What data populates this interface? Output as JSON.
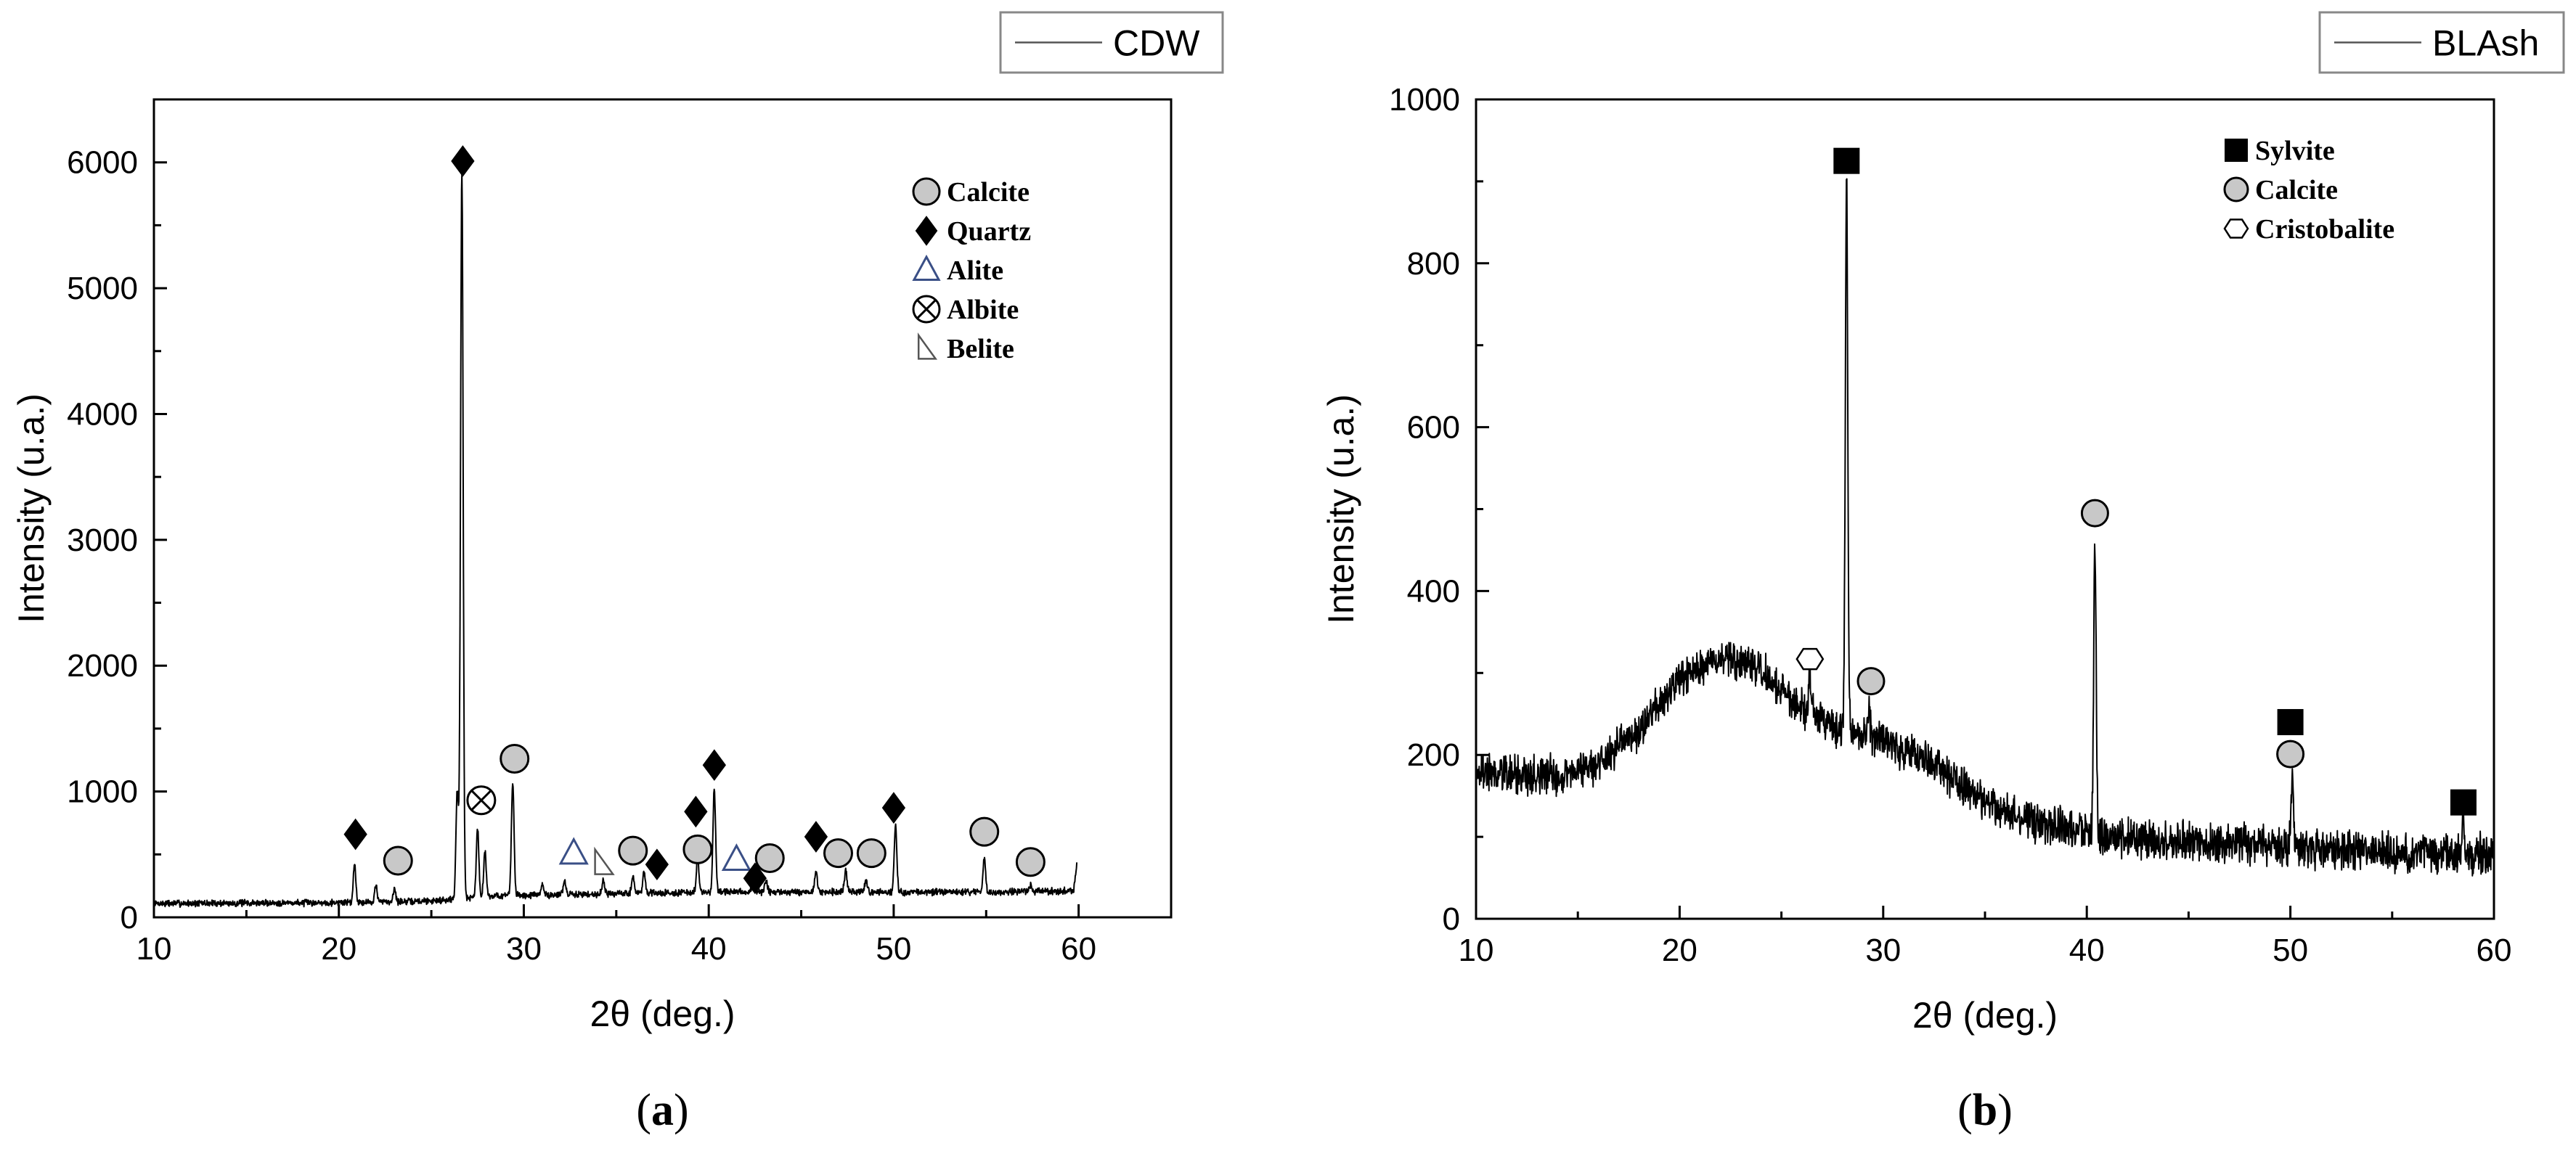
{
  "chart_data": [
    {
      "type": "line",
      "panel_label": "a",
      "series_name": "CDW",
      "xlabel": "2θ (deg.)",
      "ylabel": "Intensity (u.a.)",
      "xlim": [
        10,
        65
      ],
      "ylim": [
        0,
        6500
      ],
      "xticks": [
        10,
        20,
        30,
        40,
        50,
        60
      ],
      "yticks": [
        0,
        1000,
        2000,
        3000,
        4000,
        5000,
        6000
      ],
      "baseline": {
        "x": [
          10,
          18,
          24,
          26,
          28,
          32,
          36,
          40,
          44,
          48,
          52,
          56,
          59.5
        ],
        "y": [
          110,
          115,
          125,
          140,
          170,
          180,
          190,
          200,
          200,
          200,
          200,
          200,
          210
        ]
      },
      "peaks": [
        {
          "x": 20.85,
          "y": 420
        },
        {
          "x": 22.0,
          "y": 250
        },
        {
          "x": 23.0,
          "y": 230
        },
        {
          "x": 26.4,
          "y": 1000
        },
        {
          "x": 26.65,
          "y": 5950
        },
        {
          "x": 27.5,
          "y": 700
        },
        {
          "x": 27.9,
          "y": 520
        },
        {
          "x": 29.4,
          "y": 1080
        },
        {
          "x": 31.0,
          "y": 260
        },
        {
          "x": 32.2,
          "y": 290
        },
        {
          "x": 34.3,
          "y": 300
        },
        {
          "x": 35.9,
          "y": 330
        },
        {
          "x": 36.5,
          "y": 360
        },
        {
          "x": 39.4,
          "y": 460
        },
        {
          "x": 40.3,
          "y": 1020
        },
        {
          "x": 42.4,
          "y": 300
        },
        {
          "x": 43.1,
          "y": 290
        },
        {
          "x": 45.8,
          "y": 370
        },
        {
          "x": 47.4,
          "y": 370
        },
        {
          "x": 48.5,
          "y": 300
        },
        {
          "x": 50.1,
          "y": 720
        },
        {
          "x": 54.9,
          "y": 470
        },
        {
          "x": 57.4,
          "y": 260
        },
        {
          "x": 59.9,
          "y": 420
        }
      ],
      "legend": [
        {
          "label": "Calcite",
          "marker": "circle-gray"
        },
        {
          "label": "Quartz",
          "marker": "diamond-black"
        },
        {
          "label": "Alite",
          "marker": "triangle-blue"
        },
        {
          "label": "Albite",
          "marker": "circle-cross"
        },
        {
          "label": "Belite",
          "marker": "right-triangle"
        }
      ],
      "markers": [
        {
          "phase": "Quartz",
          "marker": "diamond-black",
          "x": 20.9,
          "y": 660
        },
        {
          "phase": "Calcite",
          "marker": "circle-gray",
          "x": 23.2,
          "y": 450
        },
        {
          "phase": "Quartz",
          "marker": "diamond-black",
          "x": 26.7,
          "y": 6010
        },
        {
          "phase": "Albite",
          "marker": "circle-cross",
          "x": 27.7,
          "y": 930
        },
        {
          "phase": "Calcite",
          "marker": "circle-gray",
          "x": 29.5,
          "y": 1260
        },
        {
          "phase": "Alite",
          "marker": "triangle-blue",
          "x": 32.7,
          "y": 510
        },
        {
          "phase": "Belite",
          "marker": "right-triangle",
          "x": 34.3,
          "y": 430
        },
        {
          "phase": "Calcite",
          "marker": "circle-gray",
          "x": 35.9,
          "y": 530
        },
        {
          "phase": "Quartz",
          "marker": "diamond-black",
          "x": 37.2,
          "y": 420
        },
        {
          "phase": "Quartz",
          "marker": "diamond-black",
          "x": 39.3,
          "y": 840
        },
        {
          "phase": "Calcite",
          "marker": "circle-gray",
          "x": 39.4,
          "y": 540
        },
        {
          "phase": "Quartz",
          "marker": "diamond-black",
          "x": 40.3,
          "y": 1210
        },
        {
          "phase": "Alite",
          "marker": "triangle-blue",
          "x": 41.5,
          "y": 460
        },
        {
          "phase": "Quartz",
          "marker": "diamond-black",
          "x": 42.5,
          "y": 310
        },
        {
          "phase": "Calcite",
          "marker": "circle-gray",
          "x": 43.3,
          "y": 470
        },
        {
          "phase": "Quartz",
          "marker": "diamond-black",
          "x": 45.8,
          "y": 640
        },
        {
          "phase": "Calcite",
          "marker": "circle-gray",
          "x": 47.0,
          "y": 510
        },
        {
          "phase": "Calcite",
          "marker": "circle-gray",
          "x": 48.8,
          "y": 510
        },
        {
          "phase": "Quartz",
          "marker": "diamond-black",
          "x": 50.0,
          "y": 870
        },
        {
          "phase": "Calcite",
          "marker": "circle-gray",
          "x": 54.9,
          "y": 680
        },
        {
          "phase": "Calcite",
          "marker": "circle-gray",
          "x": 57.4,
          "y": 440
        }
      ]
    },
    {
      "type": "line",
      "panel_label": "b",
      "series_name": "BLAsh",
      "xlabel": "2θ (deg.)",
      "ylabel": "Intensity (u.a.)",
      "xlim": [
        10,
        60
      ],
      "ylim": [
        0,
        1000
      ],
      "xticks": [
        10,
        20,
        30,
        40,
        50,
        60
      ],
      "yticks": [
        0,
        200,
        400,
        600,
        800,
        1000
      ],
      "baseline": {
        "x": [
          10,
          12,
          14,
          16,
          18,
          20,
          22,
          24,
          26,
          28,
          30,
          32,
          34,
          36,
          38,
          40,
          44,
          48,
          52,
          56,
          60
        ],
        "y": [
          180,
          175,
          175,
          190,
          230,
          290,
          320,
          300,
          260,
          230,
          215,
          195,
          160,
          130,
          115,
          105,
          95,
          92,
          85,
          80,
          80
        ]
      },
      "peaks": [
        {
          "x": 26.4,
          "y": 310
        },
        {
          "x": 28.2,
          "y": 900
        },
        {
          "x": 29.3,
          "y": 260
        },
        {
          "x": 40.4,
          "y": 470
        },
        {
          "x": 50.1,
          "y": 175
        },
        {
          "x": 58.5,
          "y": 120
        }
      ],
      "legend": [
        {
          "label": "Sylvite",
          "marker": "square-black"
        },
        {
          "label": "Calcite",
          "marker": "circle-gray"
        },
        {
          "label": "Cristobalite",
          "marker": "hexagon-open"
        }
      ],
      "markers": [
        {
          "phase": "Sylvite",
          "marker": "square-black",
          "x": 28.2,
          "y": 925
        },
        {
          "phase": "Cristobalite",
          "marker": "hexagon-open",
          "x": 26.4,
          "y": 317
        },
        {
          "phase": "Calcite",
          "marker": "circle-gray",
          "x": 29.4,
          "y": 290
        },
        {
          "phase": "Calcite",
          "marker": "circle-gray",
          "x": 40.4,
          "y": 495
        },
        {
          "phase": "Sylvite",
          "marker": "square-black",
          "x": 50.0,
          "y": 240
        },
        {
          "phase": "Calcite",
          "marker": "circle-gray",
          "x": 50.0,
          "y": 201
        },
        {
          "phase": "Sylvite",
          "marker": "square-black",
          "x": 58.5,
          "y": 142
        }
      ]
    }
  ]
}
